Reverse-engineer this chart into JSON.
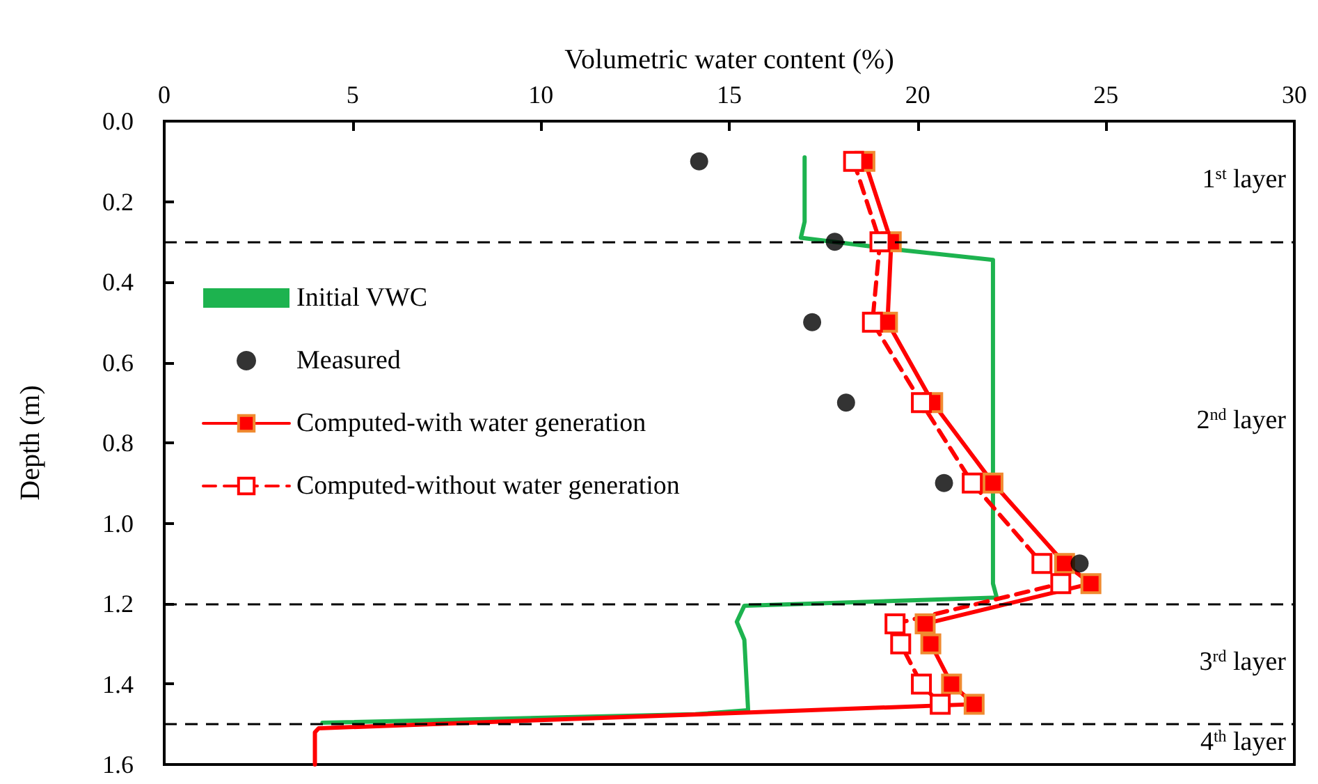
{
  "chart_data": {
    "type": "line",
    "xlabel": "Volumetric water content (%)",
    "ylabel": "Depth (m)",
    "xlim": [
      0,
      30
    ],
    "xticks": [
      0,
      5,
      10,
      15,
      20,
      25,
      30
    ],
    "ylim": [
      1.6,
      0
    ],
    "yticks": [
      {
        "value": 0,
        "label": "0.0"
      },
      {
        "value": 0.2,
        "label": "0.2"
      },
      {
        "value": 0.4,
        "label": "0.4"
      },
      {
        "value": 0.6,
        "label": "0.6"
      },
      {
        "value": 0.8,
        "label": "0.8"
      },
      {
        "value": 1,
        "label": "1.0"
      },
      {
        "value": 1.2,
        "label": "1.2"
      },
      {
        "value": 1.4,
        "label": "1.4"
      },
      {
        "value": 1.6,
        "label": "1.6"
      }
    ],
    "grid": false,
    "legend": "left",
    "series": [
      {
        "name": "Initial VWC",
        "color": "#1db34f",
        "marker": "none",
        "line_style": "solid",
        "x": [
          17.0,
          17.0,
          16.9,
          19.5,
          22.0,
          22.0,
          22.0,
          22.1,
          15.4,
          15.2,
          15.4,
          15.5,
          14.1,
          4.2
        ],
        "values": [
          0.09,
          0.25,
          0.29,
          0.32,
          0.345,
          0.385,
          1.15,
          1.185,
          1.205,
          1.245,
          1.29,
          1.465,
          1.475,
          1.496
        ]
      },
      {
        "name": "Measured",
        "type": "scatter",
        "color": "#000000",
        "marker": "circle",
        "x": [
          14.2,
          17.8,
          17.2,
          18.1,
          20.7,
          24.3
        ],
        "values": [
          0.1,
          0.3,
          0.5,
          0.7,
          0.9,
          1.1
        ]
      },
      {
        "name": "Computed-with water generation",
        "color": "#ff0000",
        "marker": "square",
        "line_style": "solid",
        "x": [
          18.6,
          19.3,
          19.2,
          20.4,
          22.0,
          23.9,
          24.6,
          20.2,
          20.35,
          20.9,
          21.5
        ],
        "values": [
          0.1,
          0.3,
          0.5,
          0.7,
          0.9,
          1.1,
          1.15,
          1.25,
          1.3,
          1.4,
          1.45
        ]
      },
      {
        "name": "Computed-without water generation",
        "color": "#ff0000",
        "marker": "square",
        "line_style": "dashed",
        "x": [
          18.3,
          19.0,
          18.8,
          20.1,
          21.45,
          23.3,
          23.8,
          19.4,
          19.55,
          20.1,
          20.6
        ],
        "values": [
          0.1,
          0.3,
          0.5,
          0.7,
          0.9,
          1.1,
          1.15,
          1.25,
          1.3,
          1.4,
          1.45
        ]
      },
      {
        "color": "#ff0000",
        "marker": "none",
        "line_style": "solid",
        "x": [
          21.5,
          4.1,
          4.0,
          4.0
        ],
        "values": [
          1.45,
          1.51,
          1.52,
          1.6
        ]
      }
    ],
    "ref_lines": [
      {
        "axis": "y",
        "value": 0.3,
        "color": "#000000",
        "line_style": "dashed"
      },
      {
        "axis": "y",
        "value": 1.2,
        "color": "#000000",
        "line_style": "dashed"
      },
      {
        "axis": "y",
        "value": 1.5,
        "color": "#000000",
        "line_style": "dashed"
      }
    ],
    "annotations": [
      "1$^{st}$ layer",
      "2$^{nd}$ layer",
      "3$^{rd}$ layer",
      "4$^{th}$ layer"
    ]
  }
}
